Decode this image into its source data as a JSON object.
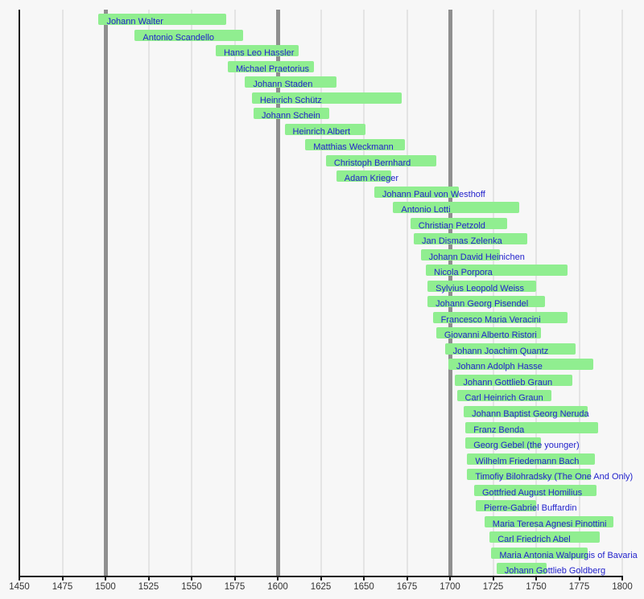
{
  "chart_data": {
    "type": "bar",
    "variant": "horizontal-timeline-gantt",
    "title": "",
    "xlabel": "",
    "ylabel": "",
    "xlim": [
      1450,
      1800
    ],
    "tick_step": 25,
    "grid": true,
    "major_gridline_years": [
      1500,
      1600,
      1700
    ],
    "x_ticks": [
      "1450",
      "1475",
      "1500",
      "1525",
      "1550",
      "1575",
      "1600",
      "1625",
      "1650",
      "1675",
      "1700",
      "1725",
      "1750",
      "1775",
      "1800"
    ],
    "bars": [
      {
        "label": "Johann Walter",
        "start": 1496,
        "end": 1570
      },
      {
        "label": "Antonio Scandello",
        "start": 1517,
        "end": 1580
      },
      {
        "label": "Hans Leo Hassler",
        "start": 1564,
        "end": 1612
      },
      {
        "label": "Michael Praetorius",
        "start": 1571,
        "end": 1621
      },
      {
        "label": "Johann Staden",
        "start": 1581,
        "end": 1634
      },
      {
        "label": "Heinrich Schütz",
        "start": 1585,
        "end": 1672
      },
      {
        "label": "Johann Schein",
        "start": 1586,
        "end": 1630
      },
      {
        "label": "Heinrich Albert",
        "start": 1604,
        "end": 1651
      },
      {
        "label": "Matthias Weckmann",
        "start": 1616,
        "end": 1674
      },
      {
        "label": "Christoph Bernhard",
        "start": 1628,
        "end": 1692
      },
      {
        "label": "Adam Krieger",
        "start": 1634,
        "end": 1666
      },
      {
        "label": "Johann Paul von Westhoff",
        "start": 1656,
        "end": 1705
      },
      {
        "label": "Antonio Lotti",
        "start": 1667,
        "end": 1740
      },
      {
        "label": "Christian Petzold",
        "start": 1677,
        "end": 1733
      },
      {
        "label": "Jan Dismas Zelenka",
        "start": 1679,
        "end": 1745
      },
      {
        "label": "Johann David Heinichen",
        "start": 1683,
        "end": 1729
      },
      {
        "label": "Nicola Porpora",
        "start": 1686,
        "end": 1768
      },
      {
        "label": "Sylvius Leopold Weiss",
        "start": 1687,
        "end": 1750
      },
      {
        "label": "Johann Georg Pisendel",
        "start": 1687,
        "end": 1755
      },
      {
        "label": "Francesco Maria Veracini",
        "start": 1690,
        "end": 1768
      },
      {
        "label": "Giovanni Alberto Ristori",
        "start": 1692,
        "end": 1753
      },
      {
        "label": "Johann Joachim Quantz",
        "start": 1697,
        "end": 1773
      },
      {
        "label": "Johann Adolph Hasse",
        "start": 1699,
        "end": 1783
      },
      {
        "label": "Johann Gottlieb Graun",
        "start": 1703,
        "end": 1771
      },
      {
        "label": "Carl Heinrich Graun",
        "start": 1704,
        "end": 1759
      },
      {
        "label": "Johann Baptist Georg Neruda",
        "start": 1708,
        "end": 1780
      },
      {
        "label": "Franz Benda",
        "start": 1709,
        "end": 1786
      },
      {
        "label": "Georg Gebel (the younger)",
        "start": 1709,
        "end": 1753
      },
      {
        "label": "Wilhelm Friedemann Bach",
        "start": 1710,
        "end": 1784
      },
      {
        "label": "Timofiy Bilohradsky (The One And Only)",
        "start": 1710,
        "end": 1782
      },
      {
        "label": "Gottfried August Homilius",
        "start": 1714,
        "end": 1785
      },
      {
        "label": "Pierre-Gabriel Buffardin",
        "start": 1715,
        "end": 1750
      },
      {
        "label": "Maria Teresa Agnesi Pinottini",
        "start": 1720,
        "end": 1795
      },
      {
        "label": "Carl Friedrich Abel",
        "start": 1723,
        "end": 1787
      },
      {
        "label": "Maria Antonia Walpurgis of Bavaria",
        "start": 1724,
        "end": 1780
      },
      {
        "label": "Johann Gottlieb Goldberg",
        "start": 1727,
        "end": 1756
      }
    ]
  },
  "colors": {
    "background": "#f7f7f7",
    "bar_fill": "#90ee90",
    "bar_label": "#2222cc",
    "axis": "#1a1a1a",
    "tick_label": "#333333",
    "grid_minor": "#e4e4e4",
    "grid_major": "#8f8f8f"
  }
}
